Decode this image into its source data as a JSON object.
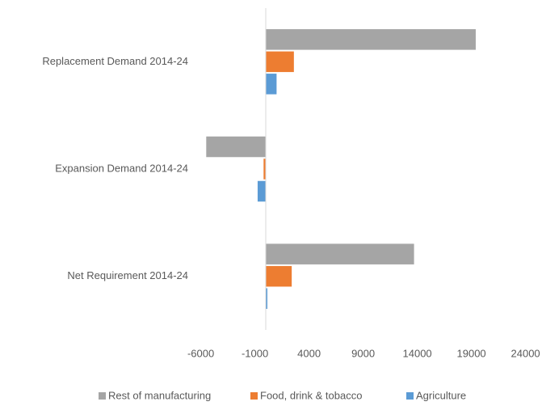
{
  "chart_data": {
    "type": "hbar",
    "categories": [
      "Replacement Demand 2014-24",
      "Expansion Demand 2014-24",
      "Net Requirement 2014-24"
    ],
    "series": [
      {
        "name": "Rest of manufacturing",
        "color": "#a5a5a5",
        "values": [
          19400,
          -5500,
          13700
        ]
      },
      {
        "name": "Food, drink & tobacco",
        "color": "#ed7d31",
        "values": [
          2600,
          -200,
          2400
        ]
      },
      {
        "name": "Agriculture",
        "color": "#5b9bd5",
        "values": [
          1000,
          -750,
          150
        ]
      }
    ],
    "xlim": [
      -6000,
      24000
    ],
    "xticks": [
      -6000,
      -1000,
      4000,
      9000,
      14000,
      19000,
      24000
    ],
    "legend": "bottom"
  }
}
